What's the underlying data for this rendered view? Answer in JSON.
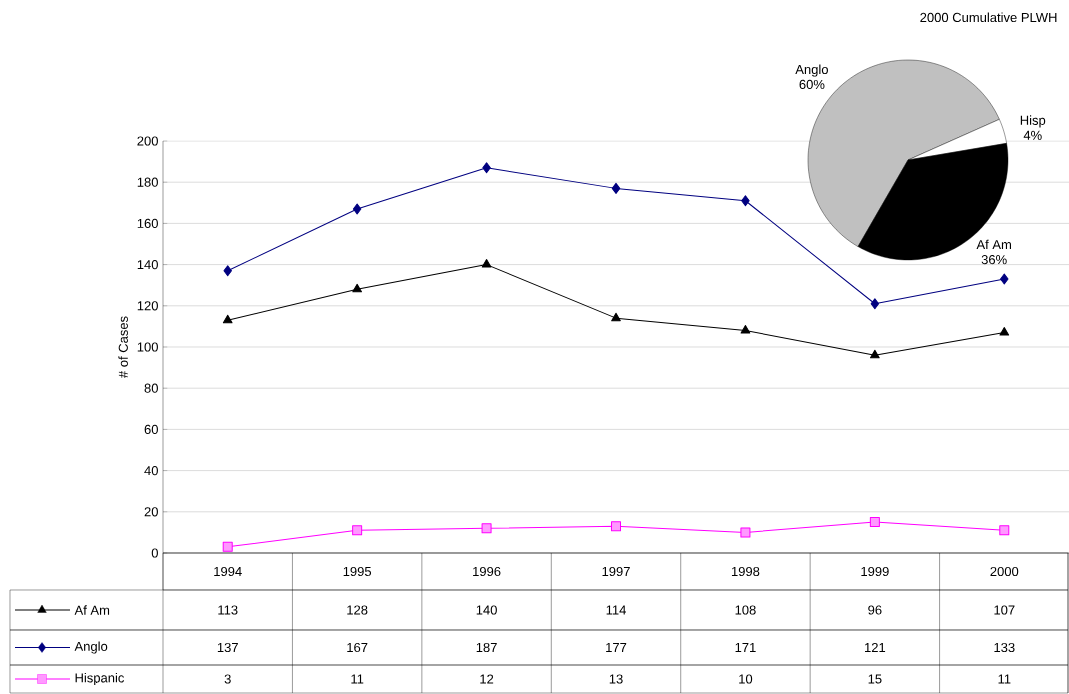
{
  "chart_data": [
    {
      "type": "line",
      "ylabel": "# of Cases",
      "categories": [
        "1994",
        "1995",
        "1996",
        "1997",
        "1998",
        "1999",
        "2000"
      ],
      "series": [
        {
          "name": "Af Am",
          "color": "#000000",
          "marker": "triangle",
          "values": [
            113,
            128,
            140,
            114,
            108,
            96,
            107
          ]
        },
        {
          "name": "Anglo",
          "color": "#000080",
          "marker": "diamond",
          "values": [
            137,
            167,
            187,
            177,
            171,
            121,
            133
          ]
        },
        {
          "name": "Hispanic",
          "color": "#ff00ff",
          "marker": "square",
          "values": [
            3,
            11,
            12,
            13,
            10,
            15,
            11
          ]
        }
      ],
      "ylim": [
        0,
        200
      ],
      "yticks": [
        0,
        20,
        40,
        60,
        80,
        100,
        120,
        140,
        160,
        180,
        200
      ],
      "grid": "y",
      "legend": "bottom",
      "data_labels": true
    },
    {
      "type": "pie",
      "title": "2000 Cumulative PLWH",
      "categories": [
        "Anglo",
        "Hisp",
        "Af Am"
      ],
      "values": [
        60,
        4,
        36
      ],
      "colors": [
        "#c0c0c0",
        "#ffffff",
        "#000000"
      ],
      "value_labels": [
        "60%",
        "4%",
        "36%"
      ]
    }
  ]
}
